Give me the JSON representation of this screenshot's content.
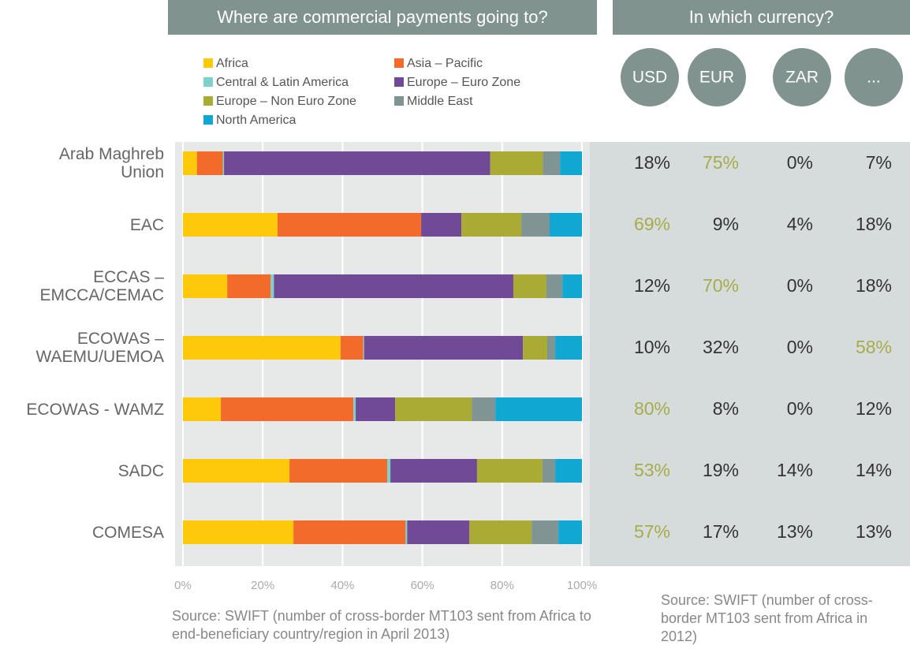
{
  "chart_data": {
    "type": "bar",
    "orientation": "horizontal",
    "stacked": true,
    "title": "Where are commercial payments going to?",
    "categories": [
      "Arab Maghreb Union",
      "EAC",
      "ECCAS – EMCCA/CEMAC",
      "ECOWAS – WAEMU/UEMOA",
      "ECOWAS - WAMZ",
      "SADC",
      "COMESA"
    ],
    "series": [
      {
        "name": "Africa",
        "color": "#ffc90b",
        "values": [
          3.5,
          23.7,
          11.1,
          39.5,
          9.5,
          26.7,
          27.7
        ]
      },
      {
        "name": "Asia – Pacific",
        "color": "#f26b2a",
        "values": [
          6.5,
          36.0,
          10.9,
          5.7,
          33.2,
          24.5,
          28.1
        ]
      },
      {
        "name": "Central & Latin America",
        "color": "#7fcfcb",
        "values": [
          0.3,
          0,
          0.8,
          0.2,
          0.6,
          0.8,
          0.4
        ]
      },
      {
        "name": "Europe – Euro Zone",
        "color": "#714a97",
        "values": [
          66.7,
          10.1,
          60.0,
          39.8,
          9.9,
          21.7,
          15.6
        ]
      },
      {
        "name": "Europe – Non Euro Zone",
        "color": "#aaab35",
        "values": [
          13.2,
          15.0,
          8.3,
          6.1,
          19.2,
          16.4,
          15.6
        ]
      },
      {
        "name": "Middle East",
        "color": "#7f9493",
        "values": [
          4.3,
          7.1,
          4.0,
          2.0,
          5.9,
          3.2,
          6.7
        ]
      },
      {
        "name": "North America",
        "color": "#10a7d3",
        "values": [
          5.5,
          8.1,
          4.9,
          6.7,
          21.7,
          6.7,
          5.9
        ]
      }
    ],
    "xlim": [
      0,
      100
    ],
    "xticks": [
      {
        "value": 0,
        "label": "0%"
      },
      {
        "value": 20,
        "label": "20%"
      },
      {
        "value": 40,
        "label": "40%"
      },
      {
        "value": 60,
        "label": "60%"
      },
      {
        "value": 80,
        "label": "80%"
      },
      {
        "value": 100,
        "label": "100%"
      }
    ],
    "grid": true,
    "source": "Source: SWIFT (number of cross-border MT103 sent from Africa to end-beneficiary country/region in April 2013)"
  },
  "currency": {
    "title": "In which currency?",
    "columns": [
      "USD",
      "EUR",
      "ZAR",
      "..."
    ],
    "rows": [
      [
        "18%",
        "75%",
        "0%",
        "7%"
      ],
      [
        "69%",
        "9%",
        "4%",
        "18%"
      ],
      [
        "12%",
        "70%",
        "0%",
        "18%"
      ],
      [
        "10%",
        "32%",
        "0%",
        "58%"
      ],
      [
        "80%",
        "8%",
        "0%",
        "12%"
      ],
      [
        "53%",
        "19%",
        "14%",
        "14%"
      ],
      [
        "57%",
        "17%",
        "13%",
        "13%"
      ]
    ],
    "highlight_color": "#a8ab4a",
    "source": "Source: SWIFT (number of cross-border MT103 sent from Africa in 2012)"
  }
}
